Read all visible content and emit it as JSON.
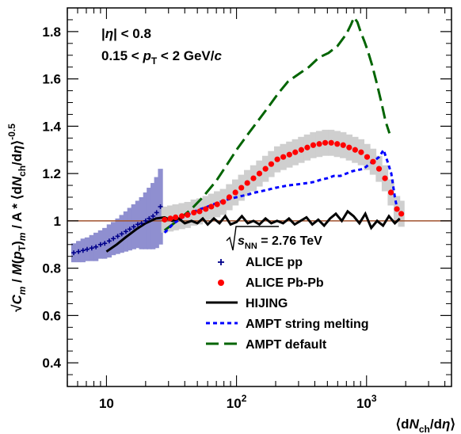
{
  "chart_data": {
    "type": "scatter",
    "xscale": "log",
    "xlim": [
      5,
      4500
    ],
    "ylim": [
      0.3,
      1.9
    ],
    "xticks": [
      {
        "value": 10,
        "label": "10"
      },
      {
        "value": 100,
        "label": "10",
        "exp": "2"
      },
      {
        "value": 1000,
        "label": "10",
        "exp": "3"
      }
    ],
    "yticks": [
      "0.4",
      "0.6",
      "0.8",
      "1",
      "1.2",
      "1.4",
      "1.6",
      "1.8"
    ],
    "ylabel": "√C_m / M(p_T)_m / A * ⟨dN_ch/dη⟩^-0.5",
    "xlabel": "⟨dN_ch/dη⟩",
    "annotations": [
      "|η| < 0.8",
      "0.15 < p_T < 2 GeV/c",
      "√s_NN = 2.76 TeV"
    ],
    "reference_line": {
      "y": 1.0,
      "color": "#a0522d"
    },
    "series": [
      {
        "name": "ALICE pp",
        "marker": "plus",
        "color": "#00008b",
        "x": [
          5.6,
          6.1,
          6.6,
          7.1,
          7.7,
          8.3,
          9.0,
          9.7,
          10.5,
          11.3,
          12.2,
          13.1,
          14.1,
          15.1,
          16.2,
          17.4,
          18.6,
          20.0,
          21.3,
          22.8,
          24.3,
          26.0
        ],
        "y": [
          0.865,
          0.87,
          0.875,
          0.88,
          0.885,
          0.89,
          0.9,
          0.905,
          0.915,
          0.925,
          0.935,
          0.945,
          0.955,
          0.965,
          0.975,
          0.985,
          0.99,
          1.0,
          1.01,
          1.02,
          1.035,
          1.06
        ],
        "band_half": [
          0.04,
          0.045,
          0.05,
          0.05,
          0.055,
          0.06,
          0.06,
          0.065,
          0.07,
          0.07,
          0.075,
          0.08,
          0.085,
          0.09,
          0.095,
          0.1,
          0.11,
          0.12,
          0.13,
          0.14,
          0.15,
          0.16
        ]
      },
      {
        "name": "ALICE Pb-Pb",
        "marker": "circle",
        "color": "#ff0000",
        "x": [
          28,
          31,
          34,
          38,
          42,
          47,
          52,
          58,
          64,
          71,
          79,
          88,
          98,
          109,
          121,
          135,
          150,
          167,
          185,
          206,
          229,
          255,
          283,
          315,
          350,
          389,
          433,
          481,
          535,
          595,
          661,
          735,
          817,
          908,
          1010,
          1122,
          1247,
          1386,
          1540,
          1712,
          1850
        ],
        "y": [
          1.005,
          1.01,
          1.015,
          1.02,
          1.025,
          1.035,
          1.04,
          1.05,
          1.06,
          1.07,
          1.08,
          1.1,
          1.12,
          1.14,
          1.16,
          1.18,
          1.2,
          1.22,
          1.24,
          1.26,
          1.27,
          1.28,
          1.29,
          1.3,
          1.31,
          1.32,
          1.325,
          1.33,
          1.33,
          1.325,
          1.32,
          1.31,
          1.3,
          1.29,
          1.27,
          1.25,
          1.22,
          1.18,
          1.12,
          1.05,
          1.03
        ],
        "band_half": 0.055
      },
      {
        "name": "HIJING",
        "style": "solid",
        "color": "#000000",
        "x": [
          10,
          12,
          14,
          17,
          20,
          24,
          28,
          32,
          36,
          40,
          45,
          50,
          55,
          60,
          67,
          74,
          82,
          90,
          100,
          110,
          122,
          135,
          150,
          167,
          185,
          205,
          228,
          253,
          280,
          311,
          345,
          383,
          425,
          472,
          524,
          581,
          645,
          716,
          795,
          882,
          979,
          1087,
          1206,
          1339,
          1486,
          1650,
          1800
        ],
        "y": [
          0.87,
          0.9,
          0.93,
          0.965,
          0.99,
          1.01,
          1.015,
          1.0,
          1.01,
          0.99,
          1.0,
          0.99,
          1.01,
          0.985,
          1.01,
          0.99,
          1.02,
          0.985,
          0.995,
          1.02,
          0.99,
          1.0,
          0.985,
          1.01,
          0.99,
          1.0,
          0.99,
          1.01,
          0.985,
          1.0,
          1.015,
          0.985,
          1.005,
          0.98,
          1.01,
          1.03,
          1.0,
          1.04,
          1.02,
          0.99,
          1.03,
          0.97,
          1.0,
          0.98,
          1.02,
          0.99,
          1.01
        ]
      },
      {
        "name": "AMPT string melting",
        "style": "dotted",
        "color": "#0000ff",
        "x": [
          28,
          33,
          40,
          50,
          60,
          70,
          85,
          100,
          120,
          140,
          170,
          200,
          250,
          300,
          350,
          400,
          450,
          500,
          560,
          630,
          700,
          780,
          860,
          950,
          1050,
          1150,
          1250,
          1350,
          1450,
          1550,
          1650,
          1750
        ],
        "y": [
          0.95,
          0.99,
          1.02,
          1.045,
          1.06,
          1.075,
          1.09,
          1.1,
          1.11,
          1.12,
          1.13,
          1.14,
          1.15,
          1.155,
          1.16,
          1.165,
          1.175,
          1.18,
          1.19,
          1.19,
          1.2,
          1.21,
          1.215,
          1.22,
          1.24,
          1.255,
          1.27,
          1.3,
          1.25,
          1.2,
          1.1,
          1.03
        ]
      },
      {
        "name": "AMPT default",
        "style": "dashed",
        "color": "#006400",
        "x": [
          28,
          35,
          45,
          55,
          70,
          85,
          100,
          120,
          145,
          175,
          210,
          250,
          300,
          360,
          430,
          510,
          600,
          700,
          760,
          800,
          850,
          900,
          960,
          1020,
          1100,
          1200,
          1300,
          1400,
          1500
        ],
        "y": [
          0.96,
          1.0,
          1.05,
          1.1,
          1.17,
          1.24,
          1.3,
          1.36,
          1.42,
          1.48,
          1.54,
          1.59,
          1.62,
          1.65,
          1.69,
          1.71,
          1.74,
          1.79,
          1.83,
          1.86,
          1.84,
          1.8,
          1.76,
          1.72,
          1.66,
          1.58,
          1.5,
          1.42,
          1.37
        ]
      }
    ],
    "legend": {
      "placement": "bottom-right"
    }
  }
}
